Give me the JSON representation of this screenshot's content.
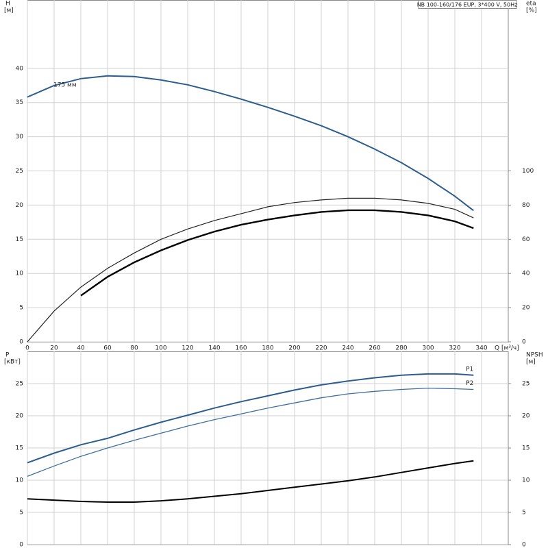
{
  "chart_data": [
    {
      "type": "line",
      "title": "NB 100-160/176 EUP, 3*400 V, 50Hz",
      "ylabel": "H",
      "yunit": "[м]",
      "y2label": "eta",
      "y2unit": "[%]",
      "xlabel": "Q [м³/ч]",
      "x": [
        0,
        20,
        40,
        60,
        80,
        100,
        120,
        140,
        160,
        180,
        200,
        220,
        240,
        260,
        280,
        300,
        320,
        334
      ],
      "xlim": [
        0,
        360
      ],
      "xticks": [
        0,
        20,
        40,
        60,
        80,
        100,
        120,
        140,
        160,
        180,
        200,
        220,
        240,
        260,
        280,
        300,
        320,
        340
      ],
      "ylim": [
        0,
        50
      ],
      "yticks": [
        0,
        5,
        10,
        15,
        20,
        25,
        30,
        35,
        40
      ],
      "y2lim": [
        0,
        200
      ],
      "y2ticks": [
        0,
        20,
        40,
        60,
        80,
        100
      ],
      "grid": true,
      "xtick_labels": true,
      "series": [
        {
          "name": "175 мм",
          "color": "#2b5d8f",
          "width": 2,
          "axis": "y",
          "values": [
            35.8,
            37.5,
            38.5,
            38.9,
            38.8,
            38.3,
            37.6,
            36.6,
            35.5,
            34.3,
            33.0,
            31.6,
            30.0,
            28.2,
            26.2,
            23.9,
            21.3,
            19.2
          ]
        },
        {
          "color": "#222222",
          "width": 1.2,
          "axis": "y2",
          "values": [
            0,
            18,
            32,
            43,
            52,
            60,
            66,
            71,
            75,
            79,
            81.5,
            83,
            84,
            84,
            83,
            81,
            77.5,
            72.5
          ]
        },
        {
          "color": "#000000",
          "width": 2.4,
          "axis": "y2",
          "values": [
            null,
            null,
            27,
            38,
            46.5,
            53.5,
            59.5,
            64.5,
            68.5,
            71.5,
            74,
            76,
            77,
            77,
            76,
            74,
            70.5,
            66.5
          ]
        }
      ]
    },
    {
      "type": "line",
      "ylabel": "P",
      "yunit": "[кВт]",
      "y2label": "NPSH",
      "y2unit": "[м]",
      "x": [
        0,
        20,
        40,
        60,
        80,
        100,
        120,
        140,
        160,
        180,
        200,
        220,
        240,
        260,
        280,
        300,
        320,
        334
      ],
      "xlim": [
        0,
        360
      ],
      "xticks": [
        0,
        20,
        40,
        60,
        80,
        100,
        120,
        140,
        160,
        180,
        200,
        220,
        240,
        260,
        280,
        300,
        320,
        340
      ],
      "ylim": [
        0,
        30
      ],
      "yticks": [
        0,
        5,
        10,
        15,
        20,
        25
      ],
      "y2lim": [
        0,
        30
      ],
      "y2ticks": [
        0,
        5,
        10,
        15,
        20,
        25
      ],
      "grid": true,
      "xtick_labels": false,
      "series": [
        {
          "name": "P1",
          "color": "#2b5d8f",
          "width": 2,
          "axis": "y",
          "values": [
            12.7,
            14.2,
            15.5,
            16.5,
            17.8,
            19.0,
            20.1,
            21.2,
            22.2,
            23.1,
            24.0,
            24.8,
            25.4,
            25.9,
            26.3,
            26.5,
            26.5,
            26.3
          ]
        },
        {
          "name": "P2",
          "color": "#3d6f9f",
          "width": 1.3,
          "axis": "y",
          "values": [
            10.6,
            12.2,
            13.7,
            15.0,
            16.2,
            17.3,
            18.4,
            19.4,
            20.3,
            21.2,
            22.0,
            22.8,
            23.4,
            23.8,
            24.1,
            24.3,
            24.2,
            24.1
          ]
        },
        {
          "color": "#000000",
          "width": 2,
          "axis": "y2",
          "values": [
            7.1,
            6.9,
            6.7,
            6.6,
            6.6,
            6.8,
            7.1,
            7.5,
            7.9,
            8.4,
            8.9,
            9.4,
            9.9,
            10.5,
            11.2,
            11.9,
            12.6,
            13.0
          ]
        }
      ]
    }
  ]
}
